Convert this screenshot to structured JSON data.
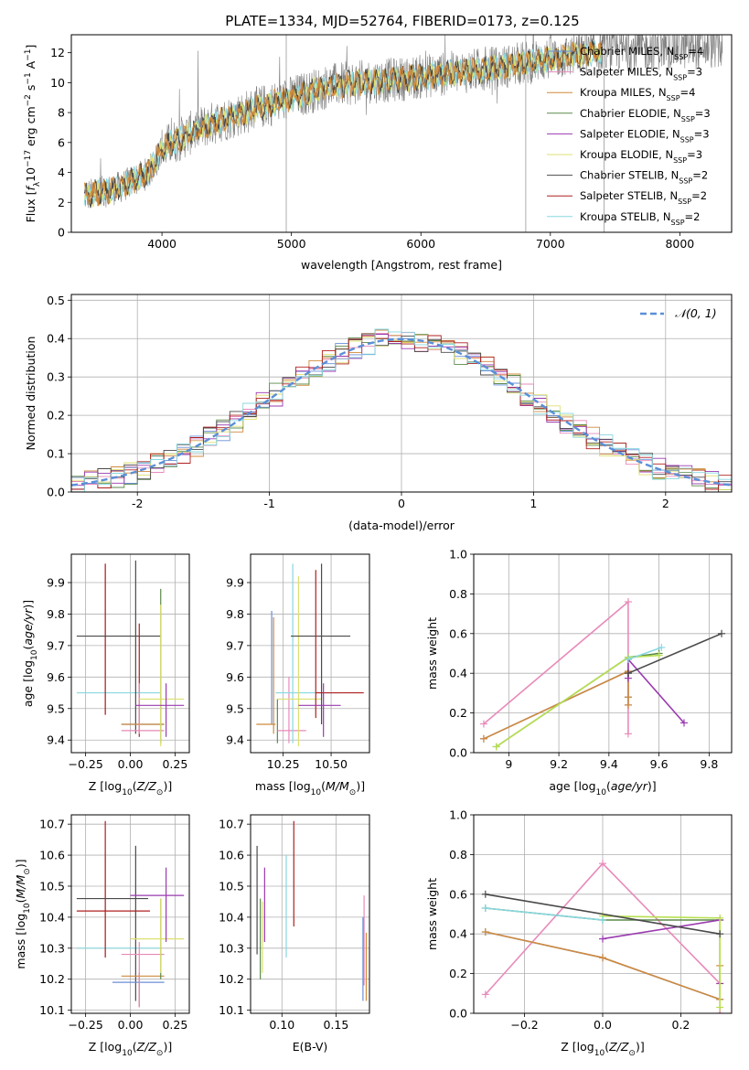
{
  "figure": {
    "title": "PLATE=1334, MJD=52764, FIBERID=0173, z=0.125"
  },
  "colors": {
    "Chabrier MILES": "#6a8fd8",
    "Salpeter MILES": "#e88aba",
    "Kroupa MILES": "#d08a3c",
    "Chabrier ELODIE": "#5a8a4a",
    "Salpeter ELODIE": "#9a3ab0",
    "Kroupa ELODIE": "#dde070",
    "Chabrier STELIB": "#4a4a4a",
    "Salpeter STELIB": "#b02020",
    "Kroupa STELIB": "#88d8e0",
    "data": "#808080",
    "gauss": "#5a8fd8",
    "grid": "#b0b0b0",
    "kroupa_elodie_line": "#b8e050"
  },
  "chart_data": [
    {
      "id": "spectrum",
      "type": "line",
      "title": "PLATE=1334, MJD=52764, FIBERID=0173, z=0.125",
      "xlabel": "wavelength [Angstrom, rest frame]",
      "ylabel": "Flux [f_λ 10^-17 erg cm^-2 s^-1 A^-1]",
      "xlim": [
        3300,
        8400
      ],
      "ylim": [
        0,
        13.2
      ],
      "xticks": [
        4000,
        5000,
        6000,
        7000,
        8000
      ],
      "yticks": [
        0,
        2,
        4,
        6,
        8,
        10,
        12
      ],
      "grid": false,
      "legend_position": "top-right",
      "legend": [
        {
          "label": "Chabrier MILES, N",
          "sub": "SSP",
          "tail": "=4",
          "key": "Chabrier MILES"
        },
        {
          "label": "Salpeter MILES, N",
          "sub": "SSP",
          "tail": "=3",
          "key": "Salpeter MILES"
        },
        {
          "label": "Kroupa MILES, N",
          "sub": "SSP",
          "tail": "=4",
          "key": "Kroupa MILES"
        },
        {
          "label": "Chabrier ELODIE, N",
          "sub": "SSP",
          "tail": "=3",
          "key": "Chabrier ELODIE"
        },
        {
          "label": "Salpeter ELODIE, N",
          "sub": "SSP",
          "tail": "=3",
          "key": "Salpeter ELODIE"
        },
        {
          "label": "Kroupa ELODIE, N",
          "sub": "SSP",
          "tail": "=3",
          "key": "Kroupa ELODIE"
        },
        {
          "label": "Chabrier STELIB, N",
          "sub": "SSP",
          "tail": "=2",
          "key": "Chabrier STELIB"
        },
        {
          "label": "Salpeter STELIB, N",
          "sub": "SSP",
          "tail": "=2",
          "key": "Salpeter STELIB"
        },
        {
          "label": "Kroupa STELIB, N",
          "sub": "SSP",
          "tail": "=2",
          "key": "Kroupa STELIB"
        }
      ],
      "continuum": {
        "x": [
          3380,
          3600,
          3700,
          3900,
          4000,
          4300,
          4500,
          4700,
          5000,
          5300,
          5500,
          5800,
          6000,
          6300,
          6600,
          7000,
          7400,
          7800,
          8200
        ],
        "y": [
          2.4,
          2.8,
          3.1,
          4.0,
          5.6,
          7.0,
          7.6,
          8.2,
          9.0,
          9.8,
          10.0,
          10.2,
          10.4,
          10.7,
          11.0,
          11.6,
          12.1,
          12.3,
          12.4
        ]
      },
      "model_xrange": [
        3400,
        7400
      ],
      "data_xrange": [
        3400,
        8330
      ]
    },
    {
      "id": "residuals",
      "type": "line",
      "xlabel": "(data-model)/error",
      "ylabel": "Normed distribution",
      "xlim": [
        -2.5,
        2.5
      ],
      "ylim": [
        0,
        0.515
      ],
      "xticks": [
        -2,
        -1,
        0,
        1,
        2
      ],
      "yticks": [
        0.0,
        0.1,
        0.2,
        0.3,
        0.4,
        0.5
      ],
      "grid": true,
      "legend_position": "top-right",
      "legend": [
        {
          "label": "𝒩(0, 1)"
        }
      ]
    },
    {
      "id": "z-age",
      "type": "scatter",
      "xlabel": "Z [log10(Z/Z⊙)]",
      "ylabel": "age [log10(age/yr)]",
      "xlim": [
        -0.33,
        0.33
      ],
      "ylim": [
        9.36,
        9.99
      ],
      "xticks": [
        -0.25,
        0.0,
        0.25
      ],
      "xtick_labels": [
        "−0.25",
        "0.00",
        "0.25"
      ],
      "yticks": [
        9.4,
        9.5,
        9.6,
        9.7,
        9.8,
        9.9
      ],
      "grid": true,
      "errorbars": [
        {
          "key": "Kroupa STELIB",
          "x": -0.14,
          "xlo": -0.3,
          "xhi": 0.17,
          "y": 9.55,
          "ylo": 9.48,
          "yhi": 9.96
        },
        {
          "key": "Salpeter STELIB",
          "x": -0.14,
          "xlo": -0.14,
          "xhi": -0.14,
          "y": 9.55,
          "ylo": 9.48,
          "yhi": 9.96
        },
        {
          "key": "Chabrier STELIB",
          "x": 0.03,
          "xlo": -0.3,
          "xhi": 0.17,
          "y": 9.73,
          "ylo": 9.42,
          "yhi": 9.97
        },
        {
          "key": "Salpeter STELIB",
          "x": 0.05,
          "xlo": 0.05,
          "xhi": 0.05,
          "y": 9.7,
          "ylo": 9.41,
          "yhi": 9.77
        },
        {
          "key": "Chabrier MILES",
          "x": 0.05,
          "xlo": -0.05,
          "xhi": 0.19,
          "y": 9.45,
          "ylo": 9.42,
          "yhi": 9.56
        },
        {
          "key": "Kroupa MILES",
          "x": 0.05,
          "xlo": -0.05,
          "xhi": 0.19,
          "y": 9.45,
          "ylo": 9.42,
          "yhi": 9.55
        },
        {
          "key": "Salpeter MILES",
          "x": 0.05,
          "xlo": -0.05,
          "xhi": 0.19,
          "y": 9.43,
          "ylo": 9.42,
          "yhi": 9.58
        },
        {
          "key": "Chabrier ELODIE",
          "x": 0.17,
          "xlo": 0.17,
          "xhi": 0.17,
          "y": 9.6,
          "ylo": 9.39,
          "yhi": 9.88
        },
        {
          "key": "Kroupa ELODIE",
          "x": 0.17,
          "xlo": 0.05,
          "xhi": 0.3,
          "y": 9.53,
          "ylo": 9.38,
          "yhi": 9.83
        },
        {
          "key": "Salpeter ELODIE",
          "x": 0.2,
          "xlo": 0.03,
          "xhi": 0.3,
          "y": 9.51,
          "ylo": 9.41,
          "yhi": 9.58
        }
      ]
    },
    {
      "id": "mass-age",
      "type": "scatter",
      "xlabel": "mass [log10(M/M⊙)]",
      "ylabel": "",
      "xlim": [
        10.08,
        10.7
      ],
      "ylim": [
        9.36,
        9.99
      ],
      "xticks": [
        10.25,
        10.5
      ],
      "xtick_labels": [
        "10.25",
        "10.50"
      ],
      "yticks": [
        9.4,
        9.5,
        9.6,
        9.7,
        9.8,
        9.9
      ],
      "grid": true,
      "errorbars": [
        {
          "key": "Chabrier MILES",
          "x": 10.19,
          "xlo": 10.19,
          "xhi": 10.19,
          "y": 9.6,
          "ylo": 9.45,
          "yhi": 9.81
        },
        {
          "key": "Kroupa MILES",
          "x": 10.2,
          "xlo": 10.11,
          "xhi": 10.21,
          "y": 9.45,
          "ylo": 9.42,
          "yhi": 9.79
        },
        {
          "key": "Chabrier ELODIE",
          "x": 10.22,
          "xlo": 10.22,
          "xhi": 10.22,
          "y": 9.5,
          "ylo": 9.39,
          "yhi": 9.53
        },
        {
          "key": "Salpeter MILES",
          "x": 10.28,
          "xlo": 10.22,
          "xhi": 10.37,
          "y": 9.43,
          "ylo": 9.39,
          "yhi": 9.6
        },
        {
          "key": "Kroupa STELIB",
          "x": 10.3,
          "xlo": 10.21,
          "xhi": 10.55,
          "y": 9.55,
          "ylo": 9.39,
          "yhi": 9.96
        },
        {
          "key": "Kroupa ELODIE",
          "x": 10.33,
          "xlo": 10.22,
          "xhi": 10.45,
          "y": 9.53,
          "ylo": 9.38,
          "yhi": 9.92
        },
        {
          "key": "Chabrier STELIB",
          "x": 10.45,
          "xlo": 10.29,
          "xhi": 10.6,
          "y": 9.73,
          "ylo": 9.45,
          "yhi": 9.96
        },
        {
          "key": "Salpeter STELIB",
          "x": 10.42,
          "xlo": 10.42,
          "xhi": 10.67,
          "y": 9.55,
          "ylo": 9.47,
          "yhi": 9.94
        },
        {
          "key": "Salpeter ELODIE",
          "x": 10.46,
          "xlo": 10.33,
          "xhi": 10.55,
          "y": 9.51,
          "ylo": 9.41,
          "yhi": 9.58
        }
      ]
    },
    {
      "id": "age-weight",
      "type": "line",
      "xlabel": "age [log10(age/yr)]",
      "ylabel": "mass weight",
      "xlim": [
        8.86,
        9.89
      ],
      "ylim": [
        0,
        1.0
      ],
      "xticks": [
        9.0,
        9.2,
        9.4,
        9.6,
        9.8
      ],
      "yticks": [
        0.0,
        0.2,
        0.4,
        0.6,
        0.8,
        1.0
      ],
      "grid": true,
      "series": [
        {
          "key": "Chabrier MILES",
          "x": [
            8.9,
            9.477,
            9.477,
            9.477
          ],
          "y": [
            0.07,
            0.41,
            0.24,
            0.28
          ]
        },
        {
          "key": "Salpeter MILES",
          "x": [
            8.9,
            9.477,
            9.477
          ],
          "y": [
            0.145,
            0.76,
            0.095
          ]
        },
        {
          "key": "Kroupa MILES",
          "x": [
            8.9,
            9.477,
            9.477,
            9.477
          ],
          "y": [
            0.07,
            0.41,
            0.24,
            0.28
          ]
        },
        {
          "key": "Chabrier ELODIE",
          "x": [
            8.95,
            9.477,
            9.6
          ],
          "y": [
            0.03,
            0.48,
            0.5
          ]
        },
        {
          "key": "Salpeter ELODIE",
          "x": [
            9.477,
            9.477,
            9.7
          ],
          "y": [
            0.375,
            0.47,
            0.15
          ]
        },
        {
          "key": "kroupa_elodie_line",
          "x": [
            8.95,
            9.477,
            9.6
          ],
          "y": [
            0.03,
            0.48,
            0.49
          ]
        },
        {
          "key": "Chabrier STELIB",
          "x": [
            9.477,
            9.85
          ],
          "y": [
            0.4,
            0.6
          ]
        },
        {
          "key": "Kroupa STELIB",
          "x": [
            9.477,
            9.61
          ],
          "y": [
            0.47,
            0.53
          ]
        }
      ]
    },
    {
      "id": "z-mass",
      "type": "scatter",
      "xlabel": "Z [log10(Z/Z⊙)]",
      "ylabel": "mass [log10(M/M⊙)]",
      "xlim": [
        -0.33,
        0.33
      ],
      "ylim": [
        10.09,
        10.73
      ],
      "xticks": [
        -0.25,
        0.0,
        0.25
      ],
      "xtick_labels": [
        "−0.25",
        "0.00",
        "0.25"
      ],
      "yticks": [
        10.1,
        10.2,
        10.3,
        10.4,
        10.5,
        10.6,
        10.7
      ],
      "grid": true,
      "errorbars": [
        {
          "key": "Kroupa STELIB",
          "x": -0.14,
          "xlo": -0.3,
          "xhi": 0.17,
          "y": 10.3,
          "ylo": 10.27,
          "yhi": 10.61
        },
        {
          "key": "Salpeter STELIB",
          "x": -0.14,
          "xlo": -0.3,
          "xhi": 0.11,
          "y": 10.42,
          "ylo": 10.27,
          "yhi": 10.71
        },
        {
          "key": "Chabrier STELIB",
          "x": 0.03,
          "xlo": -0.3,
          "xhi": 0.1,
          "y": 10.46,
          "ylo": 10.13,
          "yhi": 10.63
        },
        {
          "key": "Chabrier MILES",
          "x": 0.05,
          "xlo": -0.1,
          "xhi": 0.19,
          "y": 10.19,
          "ylo": 10.11,
          "yhi": 10.22
        },
        {
          "key": "Kroupa MILES",
          "x": 0.05,
          "xlo": -0.05,
          "xhi": 0.19,
          "y": 10.21,
          "ylo": 10.11,
          "yhi": 10.22
        },
        {
          "key": "Salpeter MILES",
          "x": 0.05,
          "xlo": -0.05,
          "xhi": 0.19,
          "y": 10.28,
          "ylo": 10.11,
          "yhi": 10.32
        },
        {
          "key": "Chabrier ELODIE",
          "x": 0.17,
          "xlo": 0.17,
          "xhi": 0.17,
          "y": 10.32,
          "ylo": 10.2,
          "yhi": 10.46
        },
        {
          "key": "Kroupa ELODIE",
          "x": 0.17,
          "xlo": 0.0,
          "xhi": 0.3,
          "y": 10.33,
          "ylo": 10.22,
          "yhi": 10.46
        },
        {
          "key": "Salpeter ELODIE",
          "x": 0.2,
          "xlo": 0.0,
          "xhi": 0.3,
          "y": 10.47,
          "ylo": 10.32,
          "yhi": 10.56
        }
      ]
    },
    {
      "id": "ebv-mass",
      "type": "scatter",
      "xlabel": "E(B-V)",
      "ylabel": "",
      "xlim": [
        0.071,
        0.181
      ],
      "ylim": [
        10.09,
        10.73
      ],
      "xticks": [
        0.1,
        0.15
      ],
      "xtick_labels": [
        "0.10",
        "0.15"
      ],
      "yticks": [
        10.1,
        10.2,
        10.3,
        10.4,
        10.5,
        10.6,
        10.7
      ],
      "grid": true,
      "errorbars": [
        {
          "key": "Chabrier STELIB",
          "x": 0.077,
          "xlo": 0.077,
          "xhi": 0.077,
          "y": 10.45,
          "ylo": 10.28,
          "yhi": 10.63
        },
        {
          "key": "Chabrier ELODIE",
          "x": 0.08,
          "xlo": 0.08,
          "xhi": 0.08,
          "y": 10.32,
          "ylo": 10.2,
          "yhi": 10.46
        },
        {
          "key": "Kroupa ELODIE",
          "x": 0.082,
          "xlo": 0.082,
          "xhi": 0.082,
          "y": 10.33,
          "ylo": 10.22,
          "yhi": 10.45
        },
        {
          "key": "Salpeter ELODIE",
          "x": 0.084,
          "xlo": 0.084,
          "xhi": 0.084,
          "y": 10.47,
          "ylo": 10.32,
          "yhi": 10.56
        },
        {
          "key": "Kroupa STELIB",
          "x": 0.104,
          "xlo": 0.104,
          "xhi": 0.104,
          "y": 10.42,
          "ylo": 10.27,
          "yhi": 10.6
        },
        {
          "key": "Salpeter STELIB",
          "x": 0.111,
          "xlo": 0.111,
          "xhi": 0.111,
          "y": 10.55,
          "ylo": 10.37,
          "yhi": 10.71
        },
        {
          "key": "Chabrier MILES",
          "x": 0.175,
          "xlo": 0.175,
          "xhi": 0.175,
          "y": 10.22,
          "ylo": 10.13,
          "yhi": 10.4
        },
        {
          "key": "Salpeter MILES",
          "x": 0.176,
          "xlo": 0.176,
          "xhi": 0.176,
          "y": 10.35,
          "ylo": 10.18,
          "yhi": 10.47
        },
        {
          "key": "Kroupa MILES",
          "x": 0.178,
          "xlo": 0.178,
          "xhi": 0.178,
          "y": 10.24,
          "ylo": 10.13,
          "yhi": 10.35
        }
      ]
    },
    {
      "id": "z-weight",
      "type": "line",
      "xlabel": "Z [log10(Z/Z⊙)]",
      "ylabel": "mass weight",
      "xlim": [
        -0.33,
        0.33
      ],
      "ylim": [
        0,
        1.0
      ],
      "xticks": [
        -0.2,
        0.0,
        0.2
      ],
      "xtick_labels": [
        "−0.2",
        "0.0",
        "0.2"
      ],
      "yticks": [
        0.0,
        0.2,
        0.4,
        0.6,
        0.8,
        1.0
      ],
      "grid": true,
      "series": [
        {
          "key": "Chabrier MILES",
          "x": [
            -0.3,
            0.0,
            0.3
          ],
          "y": [
            0.41,
            0.28,
            0.07
          ]
        },
        {
          "key": "Salpeter MILES",
          "x": [
            -0.3,
            0.0,
            0.3,
            0.3
          ],
          "y": [
            0.095,
            0.755,
            0.15,
            0.0
          ]
        },
        {
          "key": "Kroupa MILES",
          "x": [
            -0.3,
            0.0,
            0.3,
            0.3
          ],
          "y": [
            0.41,
            0.28,
            0.07,
            0.24
          ]
        },
        {
          "key": "Chabrier ELODIE",
          "x": [
            -0.3,
            0.0,
            0.3
          ],
          "y": [
            0.53,
            0.47,
            0.47
          ]
        },
        {
          "key": "Salpeter ELODIE",
          "x": [
            0.0,
            0.3,
            0.3
          ],
          "y": [
            0.375,
            0.47,
            0.15
          ]
        },
        {
          "key": "kroupa_elodie_line",
          "x": [
            0.0,
            0.3,
            0.3
          ],
          "y": [
            0.49,
            0.48,
            0.03
          ]
        },
        {
          "key": "Chabrier STELIB",
          "x": [
            -0.3,
            0.3
          ],
          "y": [
            0.6,
            0.4
          ]
        },
        {
          "key": "Kroupa STELIB",
          "x": [
            -0.3,
            0.0
          ],
          "y": [
            0.53,
            0.47
          ]
        }
      ]
    }
  ]
}
